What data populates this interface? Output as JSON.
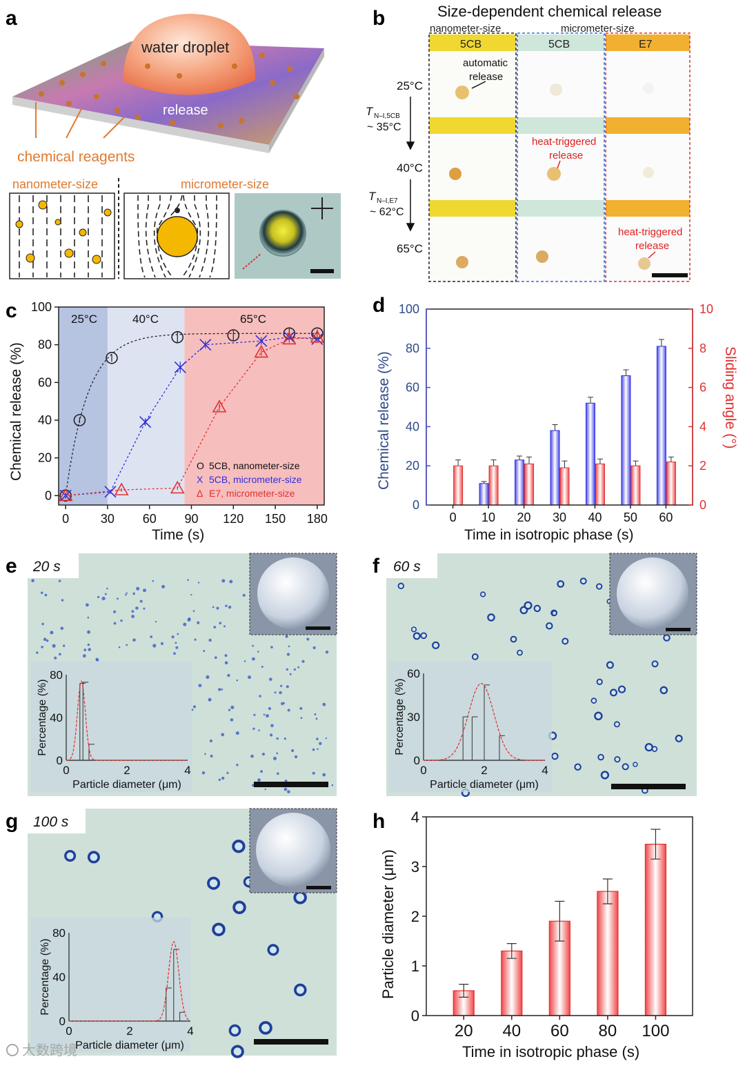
{
  "figure": {
    "panel_letters": [
      "a",
      "b",
      "c",
      "d",
      "e",
      "f",
      "g",
      "h"
    ],
    "a": {
      "droplet_label": "water droplet",
      "release_label": "release",
      "reagents_label": "chemical reagents",
      "nano_label": "nanometer-size",
      "micro_label": "micrometer-size"
    },
    "b": {
      "title": "Size-dependent chemical release",
      "col_nano": "nanometer-size",
      "col_micro": "micrometer-size",
      "headers": [
        "5CB",
        "5CB",
        "E7"
      ],
      "temps": [
        "25°C",
        "40°C",
        "65°C"
      ],
      "t1_label": "T",
      "t1_sub": "N–I,5CB",
      "t1_val": "~ 35°C",
      "t2_label": "T",
      "t2_sub": "N–I,E7",
      "t2_val": "~ 62°C",
      "auto_line1": "automatic",
      "auto_line2": "release",
      "heat_line1": "heat-triggered",
      "heat_line2": "release"
    },
    "e": {
      "time": "20 s"
    },
    "f": {
      "time": "60 s"
    },
    "g": {
      "time": "100 s"
    },
    "watermark": "大数跨境",
    "colors": {
      "blue_series": "#2f2fd8",
      "red_series": "#e03030",
      "micrograph_bg": "#cfe0d8",
      "particle": "#1f3f9a"
    }
  },
  "chart_data": [
    {
      "id": "c",
      "type": "scatter",
      "xlabel": "Time (s)",
      "ylabel": "Chemical release (%)",
      "xlim": [
        -5,
        185
      ],
      "ylim": [
        -5,
        100
      ],
      "xticks": [
        0,
        30,
        60,
        90,
        120,
        150,
        180
      ],
      "yticks": [
        0,
        20,
        40,
        60,
        80,
        100
      ],
      "regions": [
        {
          "label": "25°C",
          "from": -5,
          "to": 30,
          "color": "#a9b8dc"
        },
        {
          "label": "40°C",
          "from": 30,
          "to": 85,
          "color": "#d8def0"
        },
        {
          "label": "65°C",
          "from": 85,
          "to": 185,
          "color": "#f6b3b3"
        }
      ],
      "series": [
        {
          "name": "5CB, nanometer-size",
          "marker": "O",
          "color": "#222222",
          "x": [
            0,
            10,
            33,
            80,
            120,
            160,
            180
          ],
          "y": [
            0,
            40,
            73,
            84,
            85,
            86,
            86
          ],
          "err": [
            1.5,
            1.5,
            2,
            3,
            3,
            2.5,
            2
          ]
        },
        {
          "name": "5CB, micrometer-size",
          "marker": "X",
          "color": "#2f2fd8",
          "x": [
            0,
            32,
            57,
            82,
            100,
            140,
            160,
            180
          ],
          "y": [
            0,
            2,
            39,
            68,
            80,
            82,
            84,
            83
          ],
          "err": [
            1,
            1,
            2,
            3,
            2,
            2,
            2,
            2
          ]
        },
        {
          "name": "E7, micrometer-size",
          "marker": "Δ",
          "color": "#e03030",
          "x": [
            0,
            40,
            80,
            110,
            140,
            160,
            180
          ],
          "y": [
            0,
            3,
            4,
            47,
            76,
            83,
            84
          ],
          "err": [
            1,
            1,
            1,
            2,
            2,
            2,
            2
          ]
        }
      ]
    },
    {
      "id": "d",
      "type": "bar",
      "xlabel": "Time in isotropic phase (s)",
      "ylabel": "Chemical release (%)",
      "y2label": "Sliding angle (°)",
      "categories": [
        "0",
        "10",
        "20",
        "30",
        "40",
        "50",
        "60"
      ],
      "ylim": [
        0,
        100
      ],
      "y2lim": [
        0,
        10
      ],
      "yticks": [
        0,
        20,
        40,
        60,
        80,
        100
      ],
      "y2ticks": [
        0,
        2,
        4,
        6,
        8,
        10
      ],
      "series": [
        {
          "name": "Chemical release",
          "axis": "left",
          "color": "#2f2fd8",
          "values": [
            null,
            11,
            23,
            38,
            52,
            66,
            81
          ],
          "err": [
            0,
            1,
            2,
            3,
            3,
            3,
            3.5
          ]
        },
        {
          "name": "Sliding angle",
          "axis": "right",
          "color": "#e03030",
          "values": [
            2.0,
            2.0,
            2.1,
            1.9,
            2.1,
            2.0,
            2.2
          ],
          "err": [
            0.3,
            0.3,
            0.35,
            0.35,
            0.25,
            0.25,
            0.25
          ]
        }
      ]
    },
    {
      "id": "e_inset",
      "type": "bar",
      "xlabel": "Particle diameter (μm)",
      "ylabel": "Percentage (%)",
      "xlim": [
        0,
        4
      ],
      "ylim": [
        0,
        80
      ],
      "xticks": [
        0,
        2,
        4
      ],
      "yticks": [
        0,
        40,
        80
      ],
      "bins": [
        0.25,
        0.45,
        0.55,
        0.75
      ],
      "values": [
        0,
        72,
        73,
        15
      ],
      "fit_mu": 0.5,
      "fit_sigma": 0.13,
      "fit_peak": 74
    },
    {
      "id": "f_inset",
      "type": "bar",
      "xlabel": "Particle diameter (μm)",
      "ylabel": "Percentage (%)",
      "xlim": [
        0,
        4
      ],
      "ylim": [
        0,
        60
      ],
      "xticks": [
        0,
        2,
        4
      ],
      "yticks": [
        0,
        30,
        60
      ],
      "bins": [
        1.3,
        1.6,
        2.0,
        2.5
      ],
      "values": [
        30,
        30,
        52,
        17
      ],
      "fit_mu": 1.9,
      "fit_sigma": 0.42,
      "fit_peak": 53
    },
    {
      "id": "g_inset",
      "type": "bar",
      "xlabel": "Particle diameter (μm)",
      "ylabel": "Percentage (%)",
      "xlim": [
        0,
        4
      ],
      "ylim": [
        0,
        80
      ],
      "xticks": [
        0,
        2,
        4
      ],
      "yticks": [
        0,
        40,
        80
      ],
      "bins": [
        3.2,
        3.45,
        3.65
      ],
      "values": [
        30,
        65,
        8
      ],
      "fit_mu": 3.45,
      "fit_sigma": 0.17,
      "fit_peak": 72
    },
    {
      "id": "h",
      "type": "bar",
      "xlabel": "Time in isotropic phase (s)",
      "ylabel": "Particle diameter (μm)",
      "categories": [
        "20",
        "40",
        "60",
        "80",
        "100"
      ],
      "values": [
        0.5,
        1.3,
        1.9,
        2.5,
        3.45
      ],
      "err": [
        0.13,
        0.15,
        0.4,
        0.25,
        0.3
      ],
      "ylim": [
        0,
        4
      ],
      "yticks": [
        0,
        1,
        2,
        3,
        4
      ]
    }
  ]
}
